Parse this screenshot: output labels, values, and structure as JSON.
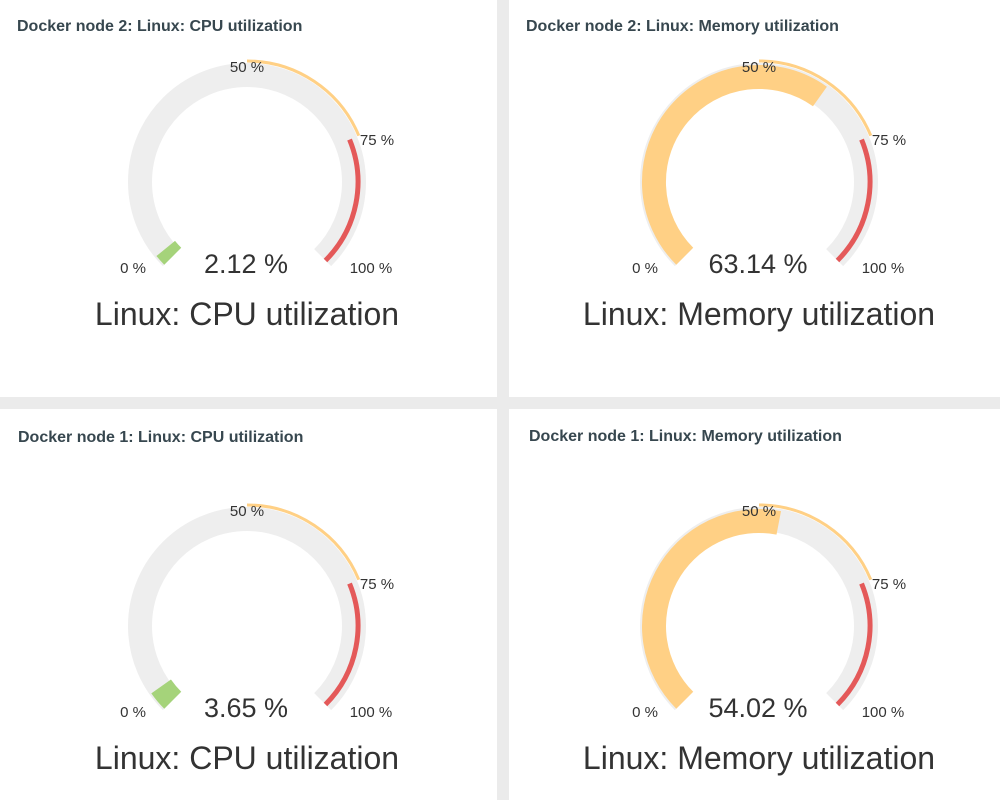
{
  "widgets": [
    {
      "title": "Docker node 2: Linux: CPU utilization",
      "value": 2.12,
      "value_text": "2.12 %",
      "description": "Linux: CPU utilization",
      "value_color": "#a5d37a"
    },
    {
      "title": "Docker node 2: Linux: Memory utilization",
      "value": 63.14,
      "value_text": "63.14 %",
      "description": "Linux: Memory utilization",
      "value_color": "#ffd085"
    },
    {
      "title": "Docker node 1: Linux: CPU utilization",
      "value": 3.65,
      "value_text": "3.65 %",
      "description": "Linux: CPU utilization",
      "value_color": "#a5d37a"
    },
    {
      "title": "Docker node 1: Linux: Memory utilization",
      "value": 54.02,
      "value_text": "54.02 %",
      "description": "Linux: Memory utilization",
      "value_color": "#ffd085"
    }
  ],
  "scale": {
    "min": 0,
    "max": 100,
    "labels": [
      "0 %",
      "50 %",
      "75 %",
      "100 %"
    ]
  },
  "thresholds": [
    {
      "from": 0,
      "to": 50,
      "color": "#eeeeee"
    },
    {
      "from": 50,
      "to": 75,
      "color": "#ffd085"
    },
    {
      "from": 75,
      "to": 100,
      "color": "#e45959"
    }
  ],
  "colors": {
    "track": "#eeeeee",
    "text": "#333333",
    "title": "#37474f"
  }
}
